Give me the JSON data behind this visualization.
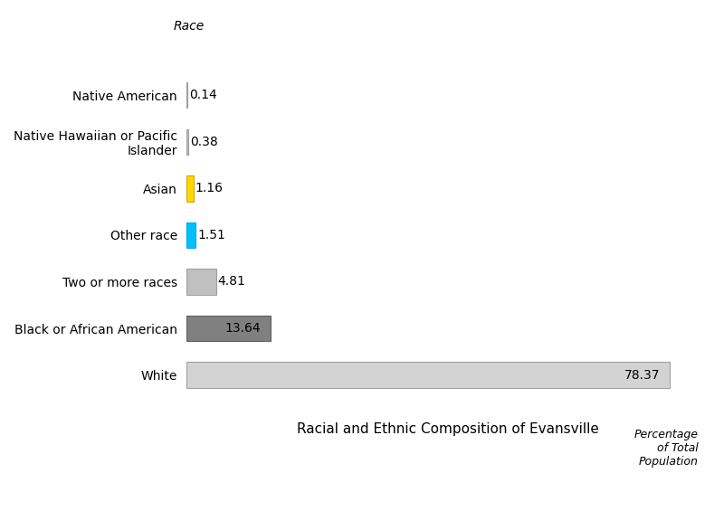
{
  "categories": [
    "White",
    "Black or African American",
    "Two or more races",
    "Other race",
    "Asian",
    "Native Hawaiian or Pacific Islander",
    "Native American"
  ],
  "values": [
    78.37,
    13.64,
    4.81,
    1.51,
    1.16,
    0.38,
    0.14
  ],
  "bar_colors": [
    "#d3d3d3",
    "#808080",
    "#c0c0c0",
    "#00bfff",
    "#ffd700",
    "#c0c0c0",
    "#c0c0c0"
  ],
  "bar_edge_colors": [
    "#a0a0a0",
    "#606060",
    "#a0a0a0",
    "#00aadd",
    "#ccaa00",
    "#a0a0a0",
    "#a0a0a0"
  ],
  "title": "Racial and Ethnic Composition of Evansville",
  "xlabel": "Percentage\nof Total\nPopulation",
  "ylabel": "Race",
  "xlim": [
    0,
    85
  ],
  "background_color": "#ffffff",
  "label_fontsize": 10,
  "title_fontsize": 11
}
